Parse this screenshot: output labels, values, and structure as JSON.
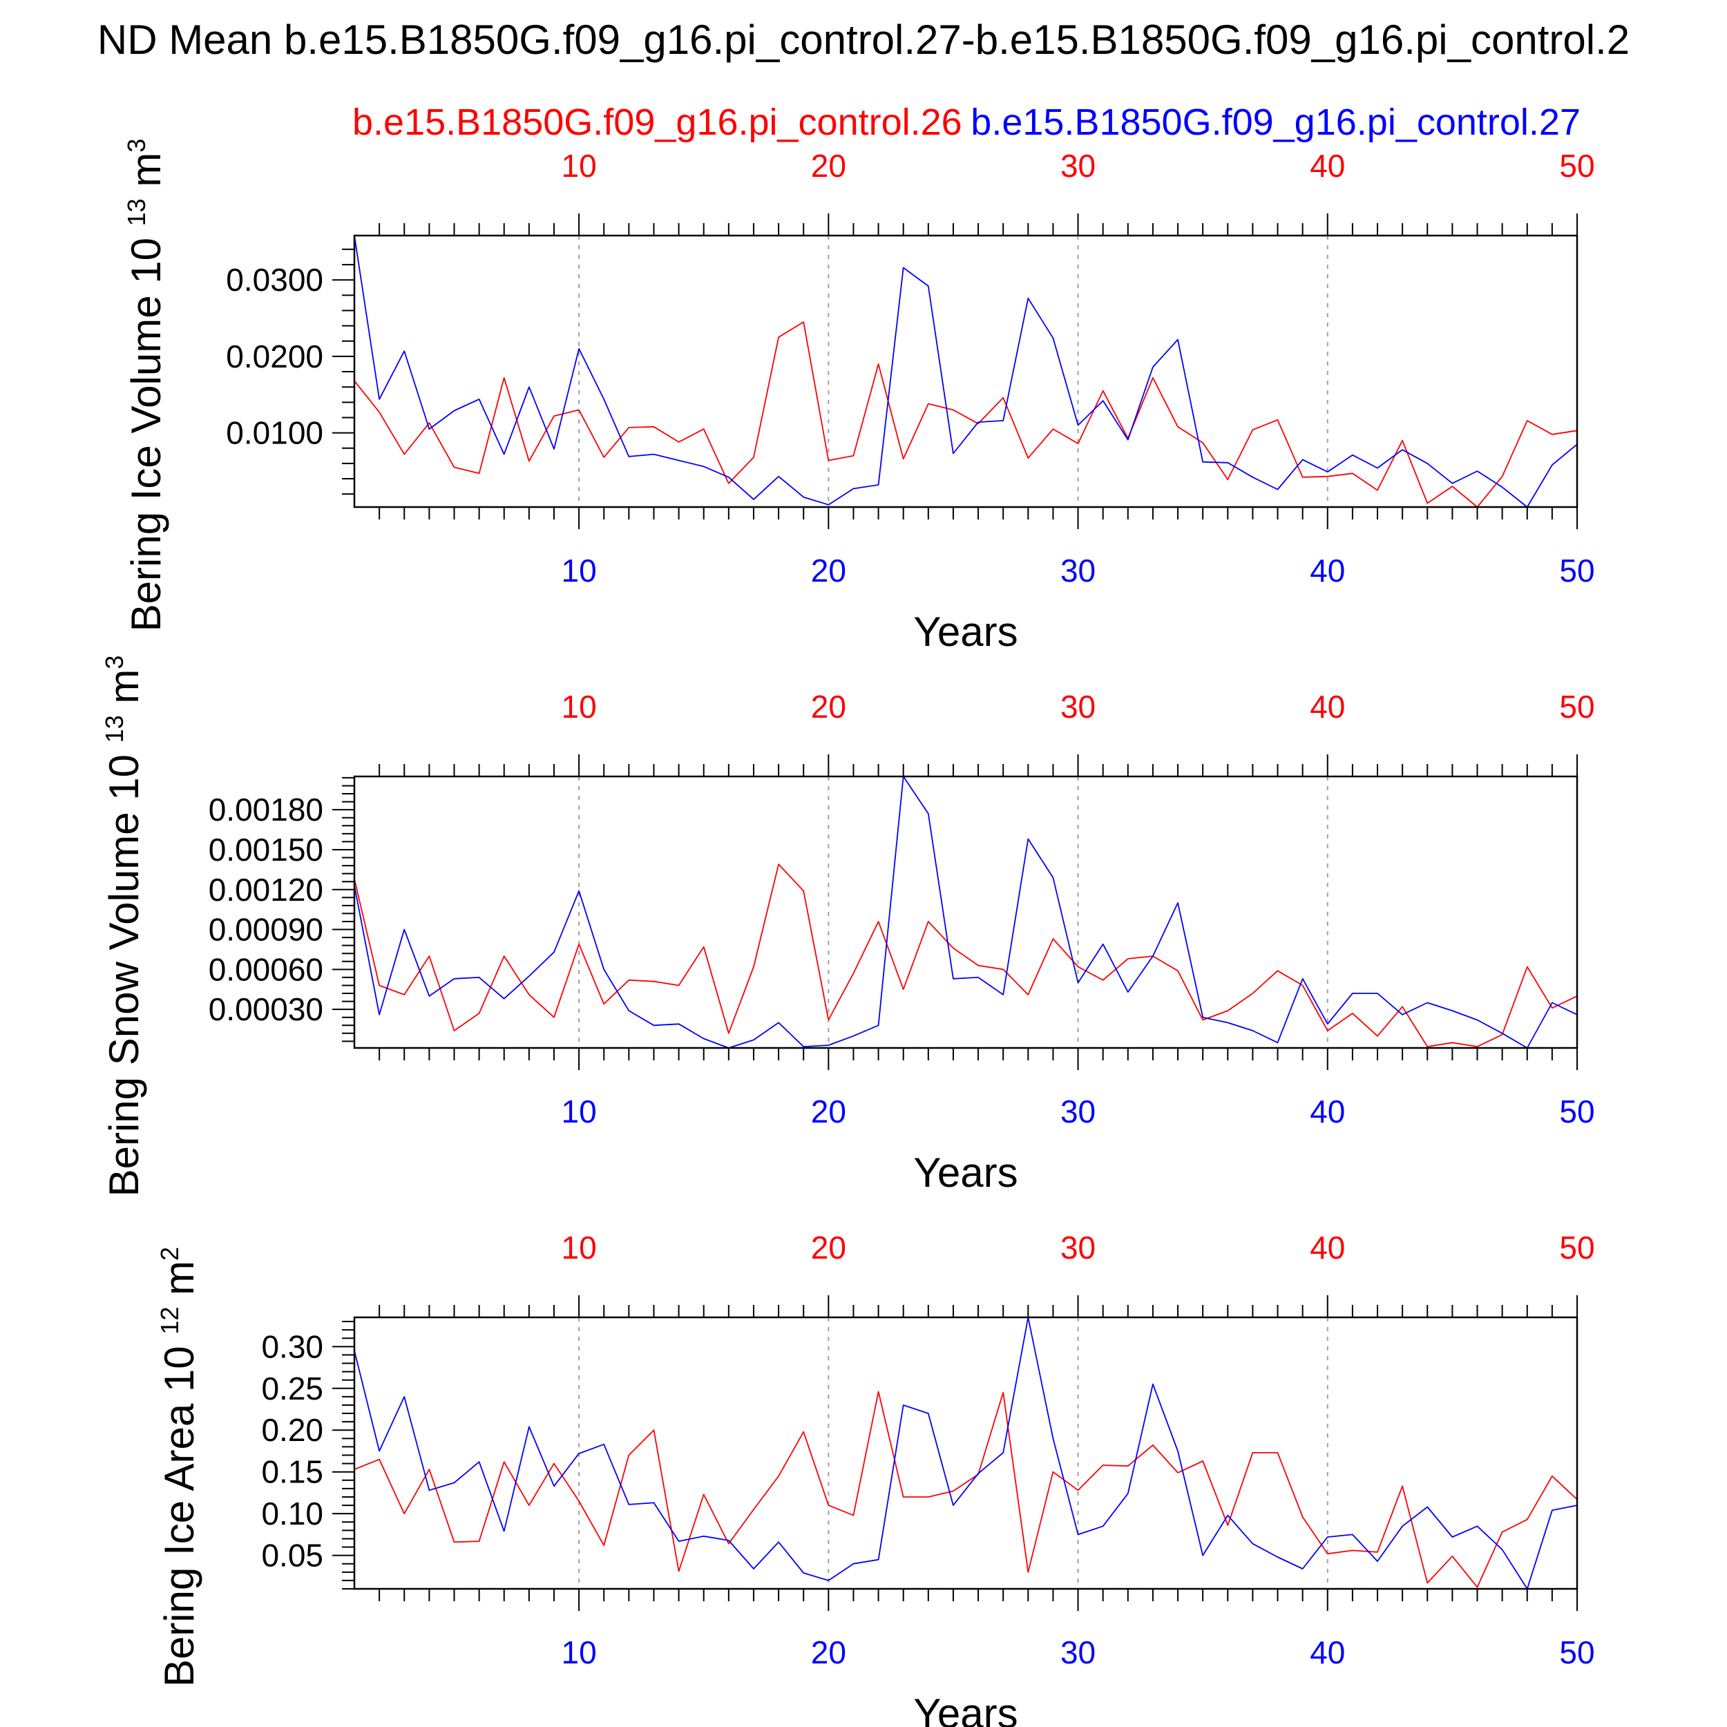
{
  "figure": {
    "title": "ND Mean b.e15.B1850G.f09_g16.pi_control.27-b.e15.B1850G.f09_g16.pi_control.2",
    "legend_red": "b.e15.B1850G.f09_g16.pi_control.26",
    "legend_blue": "b.e15.B1850G.f09_g16.pi_control.27",
    "colors": {
      "red": "#ff0000",
      "blue": "#0000ff",
      "axis": "#000000",
      "grid": "#a0a0a0"
    }
  },
  "chart_data": [
    {
      "type": "line",
      "ylabel": "Bering Ice Volume 10",
      "ylabel_exp": "13",
      "ylabel_unit": "m",
      "ylabel_unit_exp": "3",
      "xlabel": "Years",
      "xlim": [
        1,
        50
      ],
      "ylim": [
        0.0003,
        0.0358
      ],
      "yticks": [
        "0.0100",
        "0.0200",
        "0.0300"
      ],
      "ytick_values": [
        0.01,
        0.02,
        0.03
      ],
      "xticks": [
        "10",
        "20",
        "30",
        "40",
        "50"
      ],
      "xtick_values": [
        10,
        20,
        30,
        40,
        50
      ],
      "grid": "dashed vertical at x ticks",
      "x": [
        1,
        2,
        3,
        4,
        5,
        6,
        7,
        8,
        9,
        10,
        11,
        12,
        13,
        14,
        15,
        16,
        17,
        18,
        19,
        20,
        21,
        22,
        23,
        24,
        25,
        26,
        27,
        28,
        29,
        30,
        31,
        32,
        33,
        34,
        35,
        36,
        37,
        38,
        39,
        40,
        41,
        42,
        43,
        44,
        45,
        46,
        47,
        48,
        49,
        50
      ],
      "series": [
        {
          "name": "b.e15.B1850G.f09_g16.pi_control.26",
          "color": "#ff0000",
          "values": [
            0.0168,
            0.0127,
            0.0072,
            0.0113,
            0.0055,
            0.0047,
            0.0172,
            0.0063,
            0.0122,
            0.013,
            0.0068,
            0.0107,
            0.0108,
            0.0088,
            0.0105,
            0.0034,
            0.0068,
            0.0225,
            0.0245,
            0.0064,
            0.007,
            0.019,
            0.0066,
            0.0138,
            0.013,
            0.0112,
            0.0146,
            0.0067,
            0.0105,
            0.0086,
            0.0155,
            0.0093,
            0.0172,
            0.0108,
            0.0087,
            0.0039,
            0.0104,
            0.0117,
            0.0042,
            0.0043,
            0.0047,
            0.0025,
            0.009,
            0.0008,
            0.003,
            0.0003,
            0.0043,
            0.0116,
            0.0098,
            0.0103
          ]
        },
        {
          "name": "b.e15.B1850G.f09_g16.pi_control.27",
          "color": "#0000ff",
          "values": [
            0.0358,
            0.0144,
            0.0207,
            0.0105,
            0.0129,
            0.0144,
            0.0072,
            0.016,
            0.0079,
            0.021,
            0.0144,
            0.0069,
            0.0072,
            0.0064,
            0.0056,
            0.0042,
            0.0013,
            0.0043,
            0.0016,
            0.0006,
            0.0027,
            0.0032,
            0.0316,
            0.0292,
            0.0073,
            0.0114,
            0.0116,
            0.0276,
            0.0224,
            0.011,
            0.0142,
            0.0091,
            0.0186,
            0.0222,
            0.0062,
            0.0061,
            0.0042,
            0.0026,
            0.0065,
            0.0049,
            0.0071,
            0.0054,
            0.0078,
            0.006,
            0.0034,
            0.005,
            0.0029,
            0.0003,
            0.0058,
            0.0085
          ]
        }
      ]
    },
    {
      "type": "line",
      "ylabel": "Bering Snow Volume 10",
      "ylabel_exp": "13",
      "ylabel_unit": "m",
      "ylabel_unit_exp": "3",
      "xlabel": "Years",
      "xlim": [
        1,
        50
      ],
      "ylim": [
        1e-05,
        0.00205
      ],
      "yticks": [
        "0.00030",
        "0.00060",
        "0.00090",
        "0.00120",
        "0.00150",
        "0.00180"
      ],
      "ytick_values": [
        0.0003,
        0.0006,
        0.0009,
        0.0012,
        0.0015,
        0.0018
      ],
      "xticks": [
        "10",
        "20",
        "30",
        "40",
        "50"
      ],
      "xtick_values": [
        10,
        20,
        30,
        40,
        50
      ],
      "grid": "dashed vertical at x ticks",
      "x": [
        1,
        2,
        3,
        4,
        5,
        6,
        7,
        8,
        9,
        10,
        11,
        12,
        13,
        14,
        15,
        16,
        17,
        18,
        19,
        20,
        21,
        22,
        23,
        24,
        25,
        26,
        27,
        28,
        29,
        30,
        31,
        32,
        33,
        34,
        35,
        36,
        37,
        38,
        39,
        40,
        41,
        42,
        43,
        44,
        45,
        46,
        47,
        48,
        49,
        50
      ],
      "series": [
        {
          "name": "b.e15.B1850G.f09_g16.pi_control.26",
          "color": "#ff0000",
          "values": [
            0.00128,
            0.00048,
            0.00041,
            0.0007,
            0.00014,
            0.00027,
            0.0007,
            0.00041,
            0.00024,
            0.00079,
            0.00034,
            0.00052,
            0.00051,
            0.00048,
            0.00077,
            0.00012,
            0.00062,
            0.00139,
            0.00119,
            0.00022,
            0.00057,
            0.00096,
            0.00045,
            0.00096,
            0.00076,
            0.00063,
            0.0006,
            0.00041,
            0.00083,
            0.00062,
            0.00052,
            0.00068,
            0.0007,
            0.00059,
            0.00022,
            0.00029,
            0.00042,
            0.00059,
            0.00048,
            0.00014,
            0.00027,
            0.0001,
            0.00032,
            2e-05,
            5e-05,
            2e-05,
            0.00011,
            0.00062,
            0.00031,
            0.0004
          ]
        },
        {
          "name": "b.e15.B1850G.f09_g16.pi_control.27",
          "color": "#0000ff",
          "values": [
            0.00123,
            0.00026,
            0.0009,
            0.0004,
            0.00053,
            0.00054,
            0.00038,
            0.00055,
            0.00073,
            0.00119,
            0.0006,
            0.00029,
            0.00018,
            0.00019,
            8e-05,
            1e-05,
            7e-05,
            0.0002,
            2e-05,
            3e-05,
            0.0001,
            0.00018,
            0.00205,
            0.00177,
            0.00053,
            0.00054,
            0.00041,
            0.00158,
            0.00129,
            0.0005,
            0.00079,
            0.00043,
            0.0007,
            0.0011,
            0.00024,
            0.0002,
            0.00014,
            5e-05,
            0.00053,
            0.00019,
            0.00042,
            0.00042,
            0.00026,
            0.00035,
            0.00029,
            0.00022,
            0.00012,
            1e-05,
            0.00035,
            0.00026
          ]
        }
      ]
    },
    {
      "type": "line",
      "ylabel": "Bering Ice Area 10",
      "ylabel_exp": "12",
      "ylabel_unit": "m",
      "ylabel_unit_exp": "2",
      "xlabel": "Years",
      "xlim": [
        1,
        50
      ],
      "ylim": [
        0.01,
        0.335
      ],
      "yticks": [
        "0.05",
        "0.10",
        "0.15",
        "0.20",
        "0.25",
        "0.30"
      ],
      "ytick_values": [
        0.05,
        0.1,
        0.15,
        0.2,
        0.25,
        0.3
      ],
      "xticks": [
        "10",
        "20",
        "30",
        "40",
        "50"
      ],
      "xtick_values": [
        10,
        20,
        30,
        40,
        50
      ],
      "grid": "dashed vertical at x ticks",
      "x": [
        1,
        2,
        3,
        4,
        5,
        6,
        7,
        8,
        9,
        10,
        11,
        12,
        13,
        14,
        15,
        16,
        17,
        18,
        19,
        20,
        21,
        22,
        23,
        24,
        25,
        26,
        27,
        28,
        29,
        30,
        31,
        32,
        33,
        34,
        35,
        36,
        37,
        38,
        39,
        40,
        41,
        42,
        43,
        44,
        45,
        46,
        47,
        48,
        49,
        50
      ],
      "series": [
        {
          "name": "b.e15.B1850G.f09_g16.pi_control.26",
          "color": "#ff0000",
          "values": [
            0.153,
            0.165,
            0.1,
            0.153,
            0.066,
            0.067,
            0.162,
            0.11,
            0.16,
            0.115,
            0.062,
            0.17,
            0.2,
            0.031,
            0.123,
            0.064,
            0.105,
            0.145,
            0.198,
            0.11,
            0.098,
            0.246,
            0.12,
            0.12,
            0.127,
            0.147,
            0.245,
            0.03,
            0.15,
            0.128,
            0.158,
            0.157,
            0.182,
            0.149,
            0.163,
            0.086,
            0.173,
            0.173,
            0.096,
            0.052,
            0.056,
            0.054,
            0.133,
            0.017,
            0.049,
            0.012,
            0.078,
            0.093,
            0.145,
            0.117
          ]
        },
        {
          "name": "b.e15.B1850G.f09_g16.pi_control.27",
          "color": "#0000ff",
          "values": [
            0.295,
            0.175,
            0.24,
            0.128,
            0.137,
            0.162,
            0.079,
            0.204,
            0.133,
            0.172,
            0.183,
            0.111,
            0.113,
            0.067,
            0.073,
            0.068,
            0.034,
            0.066,
            0.029,
            0.02,
            0.04,
            0.045,
            0.23,
            0.22,
            0.11,
            0.148,
            0.173,
            0.335,
            0.19,
            0.075,
            0.085,
            0.124,
            0.255,
            0.175,
            0.05,
            0.098,
            0.064,
            0.048,
            0.034,
            0.072,
            0.075,
            0.043,
            0.085,
            0.108,
            0.072,
            0.085,
            0.057,
            0.01,
            0.104,
            0.11
          ]
        }
      ]
    }
  ]
}
